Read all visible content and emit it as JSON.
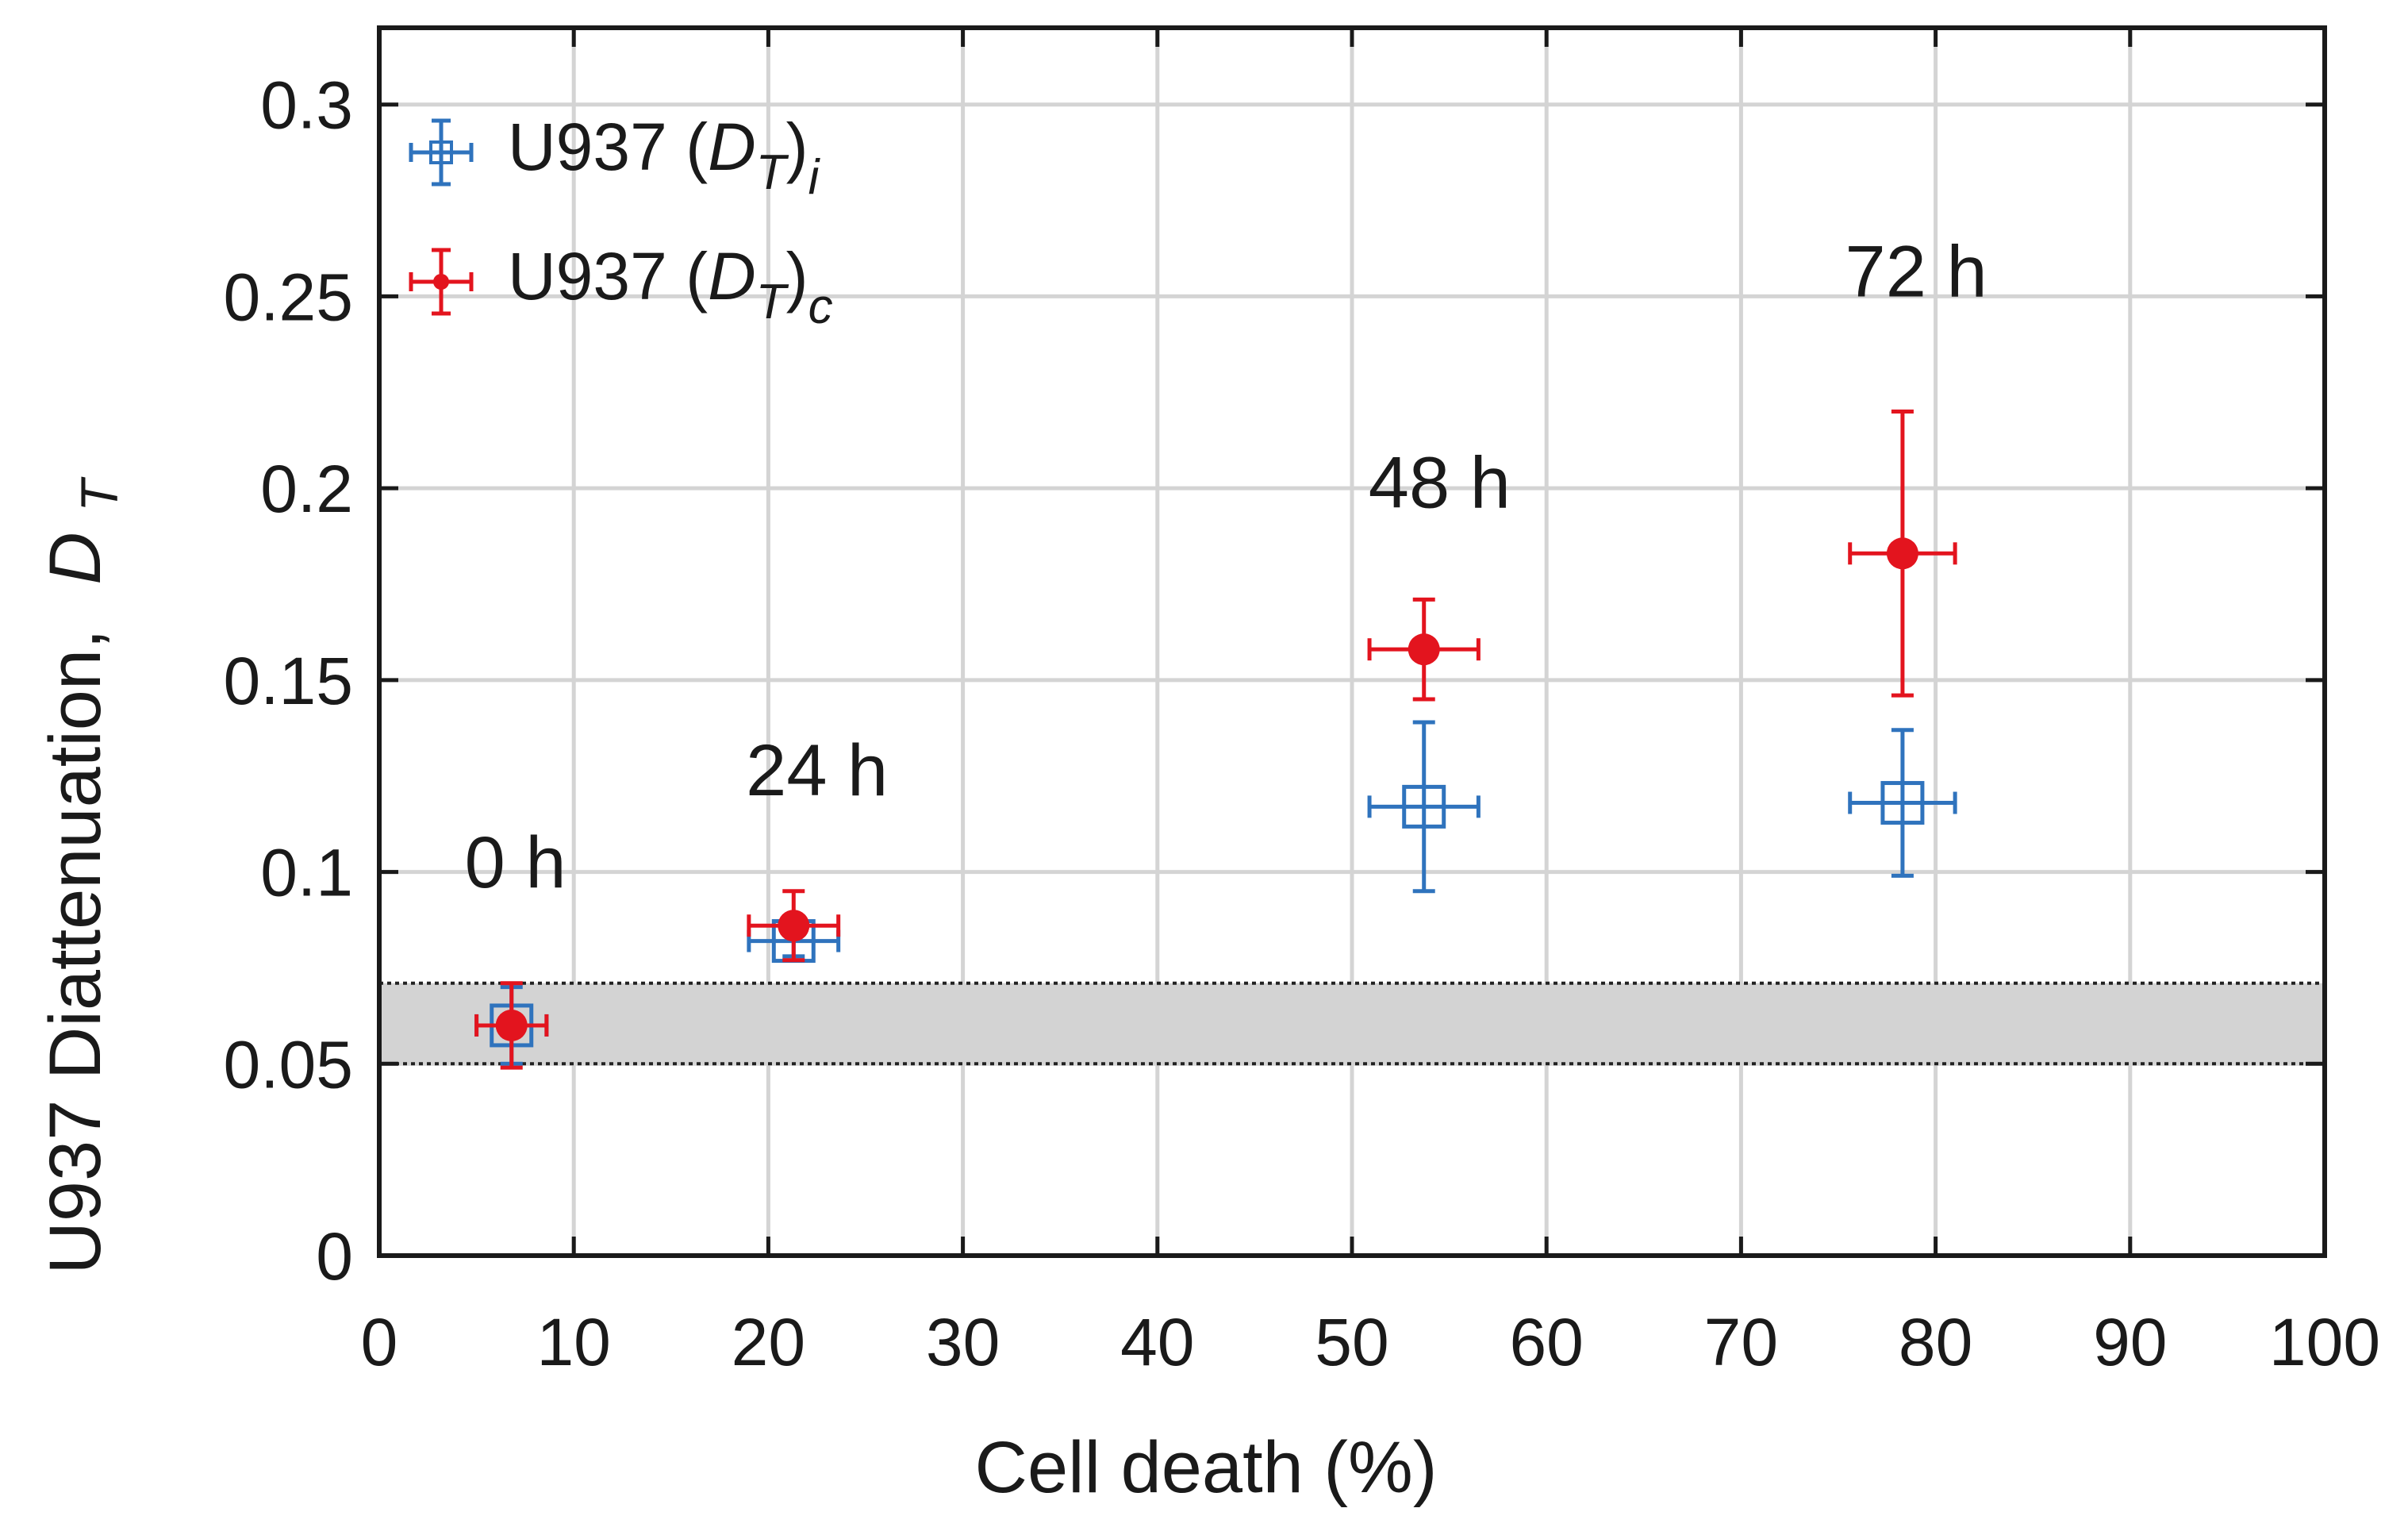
{
  "chart_data": {
    "type": "scatter",
    "title": "",
    "xlabel": "Cell death (%)",
    "ylabel": "U937 Diattenuation,",
    "ylabel_symbol": "D",
    "ylabel_symbol_sub": "T",
    "xlim": [
      0,
      100
    ],
    "ylim": [
      0,
      0.32
    ],
    "xticks": [
      0,
      10,
      20,
      30,
      40,
      50,
      60,
      70,
      80,
      90,
      100
    ],
    "yticks": [
      0,
      0.05,
      0.1,
      0.15,
      0.2,
      0.25,
      0.3
    ],
    "xtick_labels": [
      "0",
      "10",
      "20",
      "30",
      "40",
      "50",
      "60",
      "70",
      "80",
      "90",
      "100"
    ],
    "ytick_labels": [
      "0",
      "0.05",
      "0.1",
      "0.15",
      "0.2",
      "0.25",
      "0.3"
    ],
    "grid": true,
    "legend_position": "top-left",
    "band": {
      "y0": 0.05,
      "y1": 0.071,
      "color": "#d3d3d3"
    },
    "series": [
      {
        "name": "U937 (DT)i",
        "legend_prefix": "U937 (",
        "legend_var": "D",
        "legend_var_sub": "T",
        "legend_suffix": ")",
        "legend_outer_sub": "i",
        "marker": "square-open",
        "color": "#2f73bd",
        "points": [
          {
            "x": 6.8,
            "y": 0.06,
            "xerr": 1.8,
            "yerr_low": 0.01,
            "yerr_high": 0.01
          },
          {
            "x": 21.3,
            "y": 0.082,
            "xerr": 2.3,
            "yerr_low": 0.004,
            "yerr_high": 0.004
          },
          {
            "x": 53.7,
            "y": 0.117,
            "xerr": 2.8,
            "yerr_low": 0.022,
            "yerr_high": 0.022
          },
          {
            "x": 78.3,
            "y": 0.118,
            "xerr": 2.7,
            "yerr_low": 0.019,
            "yerr_high": 0.019
          }
        ]
      },
      {
        "name": "U937 (DT)c",
        "legend_prefix": "U937 (",
        "legend_var": "D",
        "legend_var_sub": "T",
        "legend_suffix": ")",
        "legend_outer_sub": "c",
        "marker": "circle-filled",
        "color": "#e3141e",
        "points": [
          {
            "x": 6.8,
            "y": 0.06,
            "xerr": 1.8,
            "yerr_low": 0.011,
            "yerr_high": 0.011
          },
          {
            "x": 21.3,
            "y": 0.086,
            "xerr": 2.3,
            "yerr_low": 0.009,
            "yerr_high": 0.009
          },
          {
            "x": 53.7,
            "y": 0.158,
            "xerr": 2.8,
            "yerr_low": 0.013,
            "yerr_high": 0.013
          },
          {
            "x": 78.3,
            "y": 0.183,
            "xerr": 2.7,
            "yerr_low": 0.037,
            "yerr_high": 0.037
          }
        ]
      }
    ],
    "annotations": [
      {
        "text": "0 h",
        "x": 7,
        "y": 0.096
      },
      {
        "text": "24 h",
        "x": 22.5,
        "y": 0.12
      },
      {
        "text": "48 h",
        "x": 54.5,
        "y": 0.195
      },
      {
        "text": "72 h",
        "x": 79,
        "y": 0.25
      }
    ]
  }
}
